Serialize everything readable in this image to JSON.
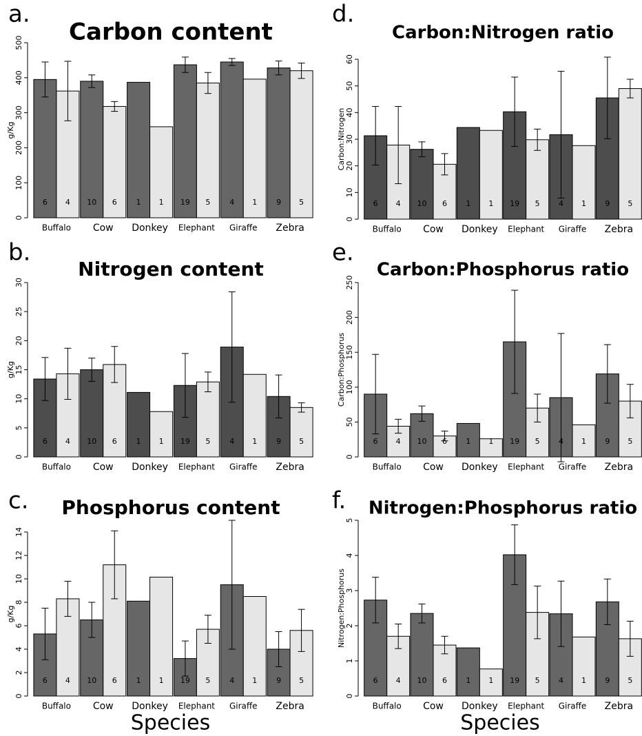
{
  "chart_data": [
    {
      "type": "bar",
      "label": "a.",
      "title": "Carbon content",
      "ylabel": "g/Kg",
      "categories": [
        "Buffalo",
        "Cow",
        "Donkey",
        "Elephant",
        "Giraffe",
        "Zebra"
      ],
      "series": [
        {
          "color": "#666666",
          "values": [
            395,
            390,
            387,
            437,
            445,
            428
          ],
          "errors": [
            50,
            18,
            null,
            22,
            10,
            20
          ],
          "n": [
            6,
            10,
            1,
            19,
            4,
            9
          ]
        },
        {
          "color": "#e6e6e6",
          "values": [
            362,
            318,
            260,
            385,
            396,
            420
          ],
          "errors": [
            85,
            14,
            null,
            30,
            null,
            22
          ],
          "n": [
            4,
            6,
            1,
            5,
            1,
            5
          ]
        }
      ],
      "ylim": [
        0,
        500
      ],
      "yticks": [
        0,
        100,
        200,
        300,
        400,
        500
      ]
    },
    {
      "type": "bar",
      "label": "b.",
      "title": "Nitrogen content",
      "ylabel": "g/Kg",
      "categories": [
        "Buffalo",
        "Cow",
        "Donkey",
        "Elephant",
        "Giraffe",
        "Zebra"
      ],
      "series": [
        {
          "color": "#4d4d4d",
          "values": [
            13.4,
            15,
            11.1,
            12.3,
            18.9,
            10.4
          ],
          "errors": [
            3.7,
            2,
            null,
            5.5,
            9.5,
            3.7
          ],
          "n": [
            6,
            10,
            1,
            19,
            4,
            9
          ]
        },
        {
          "color": "#e6e6e6",
          "values": [
            14.3,
            15.9,
            7.8,
            12.9,
            14.2,
            8.5
          ],
          "errors": [
            4.4,
            3.1,
            null,
            1.7,
            null,
            0.8
          ],
          "n": [
            4,
            6,
            1,
            5,
            1,
            5
          ]
        }
      ],
      "ylim": [
        0,
        30
      ],
      "yticks": [
        0,
        5,
        10,
        15,
        20,
        25,
        30
      ]
    },
    {
      "type": "bar",
      "label": "c.",
      "title": "Phosphorus content",
      "ylabel": "g/Kg",
      "xlabel": "Species",
      "categories": [
        "Buffalo",
        "Cow",
        "Donkey",
        "Elephant",
        "Giraffe",
        "Zebra"
      ],
      "series": [
        {
          "color": "#666666",
          "values": [
            5.3,
            6.5,
            8.1,
            3.2,
            9.5,
            4.0
          ],
          "errors": [
            2.2,
            1.5,
            null,
            1.5,
            5.5,
            1.5
          ],
          "n": [
            6,
            10,
            1,
            19,
            4,
            9
          ]
        },
        {
          "color": "#e6e6e6",
          "values": [
            8.3,
            11.2,
            10.15,
            5.7,
            8.5,
            5.6
          ],
          "errors": [
            1.5,
            2.9,
            null,
            1.2,
            null,
            1.8
          ],
          "n": [
            4,
            6,
            1,
            5,
            1,
            5
          ]
        }
      ],
      "ylim": [
        0,
        14
      ],
      "yticks": [
        0,
        2,
        4,
        6,
        8,
        10,
        12,
        14
      ]
    },
    {
      "type": "bar",
      "label": "d.",
      "title": "Carbon:Nitrogen ratio",
      "ylabel": "Carbon:Nitrogen",
      "categories": [
        "Buffalo",
        "Cow",
        "Donkey",
        "Elephant",
        "Giraffe",
        "Zebra"
      ],
      "series": [
        {
          "color": "#4d4d4d",
          "values": [
            31.3,
            26.2,
            34.4,
            40.3,
            31.7,
            45.5
          ],
          "errors": [
            11,
            2.8,
            null,
            13,
            23.8,
            15.3
          ],
          "n": [
            6,
            10,
            1,
            19,
            4,
            9
          ]
        },
        {
          "color": "#e6e6e6",
          "values": [
            27.8,
            20.6,
            33.3,
            29.8,
            27.6,
            49
          ],
          "errors": [
            14.5,
            4,
            null,
            4,
            null,
            3.5
          ],
          "n": [
            4,
            6,
            1,
            5,
            1,
            5
          ]
        }
      ],
      "ylim": [
        0,
        60
      ],
      "yticks": [
        0,
        10,
        20,
        30,
        40,
        50,
        60
      ]
    },
    {
      "type": "bar",
      "label": "e.",
      "title": "Carbon:Phosphorus ratio",
      "ylabel": "Carbon:Phosphorus",
      "categories": [
        "Buffalo",
        "Cow",
        "Donkey",
        "Elephant",
        "Giraffe",
        "Zebra"
      ],
      "series": [
        {
          "color": "#666666",
          "values": [
            90,
            62,
            48,
            165,
            85,
            119
          ],
          "errors": [
            57,
            11,
            null,
            74,
            92,
            42
          ],
          "n": [
            6,
            10,
            1,
            19,
            4,
            9
          ]
        },
        {
          "color": "#e6e6e6",
          "values": [
            44,
            30,
            26,
            70,
            46,
            80
          ],
          "errors": [
            10,
            7,
            null,
            20,
            null,
            24
          ],
          "n": [
            4,
            6,
            1,
            5,
            1,
            5
          ]
        }
      ],
      "ylim": [
        0,
        250
      ],
      "yticks": [
        0,
        50,
        100,
        150,
        200,
        250
      ]
    },
    {
      "type": "bar",
      "label": "f.",
      "title": "Nitrogen:Phosphorus ratio",
      "ylabel": "Nitrogen:Phosphorus",
      "xlabel": "Species",
      "categories": [
        "Buffalo",
        "Cow",
        "Donkey",
        "Elephant",
        "Giraffe",
        "Zebra"
      ],
      "series": [
        {
          "color": "#666666",
          "values": [
            2.73,
            2.35,
            1.37,
            4.02,
            2.34,
            2.68
          ],
          "errors": [
            0.65,
            0.27,
            null,
            0.85,
            0.93,
            0.65
          ],
          "n": [
            6,
            10,
            1,
            19,
            4,
            9
          ]
        },
        {
          "color": "#e6e6e6",
          "values": [
            1.7,
            1.45,
            0.77,
            2.38,
            1.68,
            1.63
          ],
          "errors": [
            0.35,
            0.25,
            null,
            0.75,
            null,
            0.5
          ],
          "n": [
            4,
            6,
            1,
            5,
            1,
            5
          ]
        }
      ],
      "ylim": [
        0,
        5
      ],
      "yticks": [
        0,
        1,
        2,
        3,
        4,
        5
      ]
    }
  ]
}
